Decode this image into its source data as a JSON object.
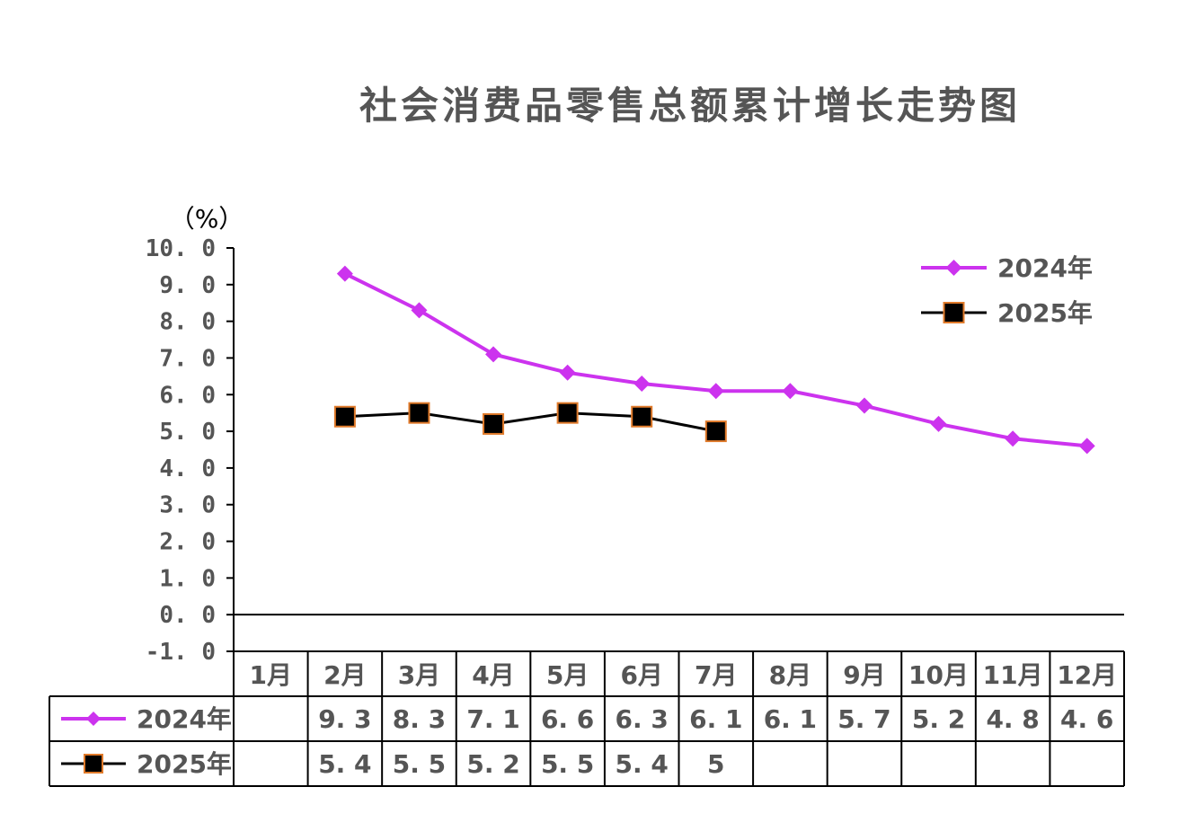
{
  "chart_data": {
    "type": "line",
    "title": "社会消费品零售总额累计增长走势图",
    "unit_label": "（%）",
    "categories": [
      "1月",
      "2月",
      "3月",
      "4月",
      "5月",
      "6月",
      "7月",
      "8月",
      "9月",
      "10月",
      "11月",
      "12月"
    ],
    "ylim": [
      -1.0,
      10.0
    ],
    "yticks": [
      "10. 0",
      "9. 0",
      "8. 0",
      "7. 0",
      "6. 0",
      "5. 0",
      "4. 0",
      "3. 0",
      "2. 0",
      "1. 0",
      "0. 0",
      "-1. 0"
    ],
    "series": [
      {
        "name": "2024年",
        "color": "#cc33ee",
        "marker": "diamond",
        "values": [
          null,
          9.3,
          8.3,
          7.1,
          6.6,
          6.3,
          6.1,
          6.1,
          5.7,
          5.2,
          4.8,
          4.6
        ],
        "table_values": [
          "",
          "9. 3",
          "8. 3",
          "7. 1",
          "6. 6",
          "6. 3",
          "6. 1",
          "6. 1",
          "5. 7",
          "5. 2",
          "4. 8",
          "4. 6"
        ]
      },
      {
        "name": "2025年",
        "color": "#000000",
        "marker_edge": "#e07a2a",
        "marker": "square",
        "values": [
          null,
          5.4,
          5.5,
          5.2,
          5.5,
          5.4,
          5.0,
          null,
          null,
          null,
          null,
          null
        ],
        "table_values": [
          "",
          "5. 4",
          "5. 5",
          "5. 2",
          "5. 5",
          "5. 4",
          "5",
          "",
          "",
          "",
          "",
          ""
        ]
      }
    ],
    "legend_position": "top-right",
    "grid": false
  }
}
